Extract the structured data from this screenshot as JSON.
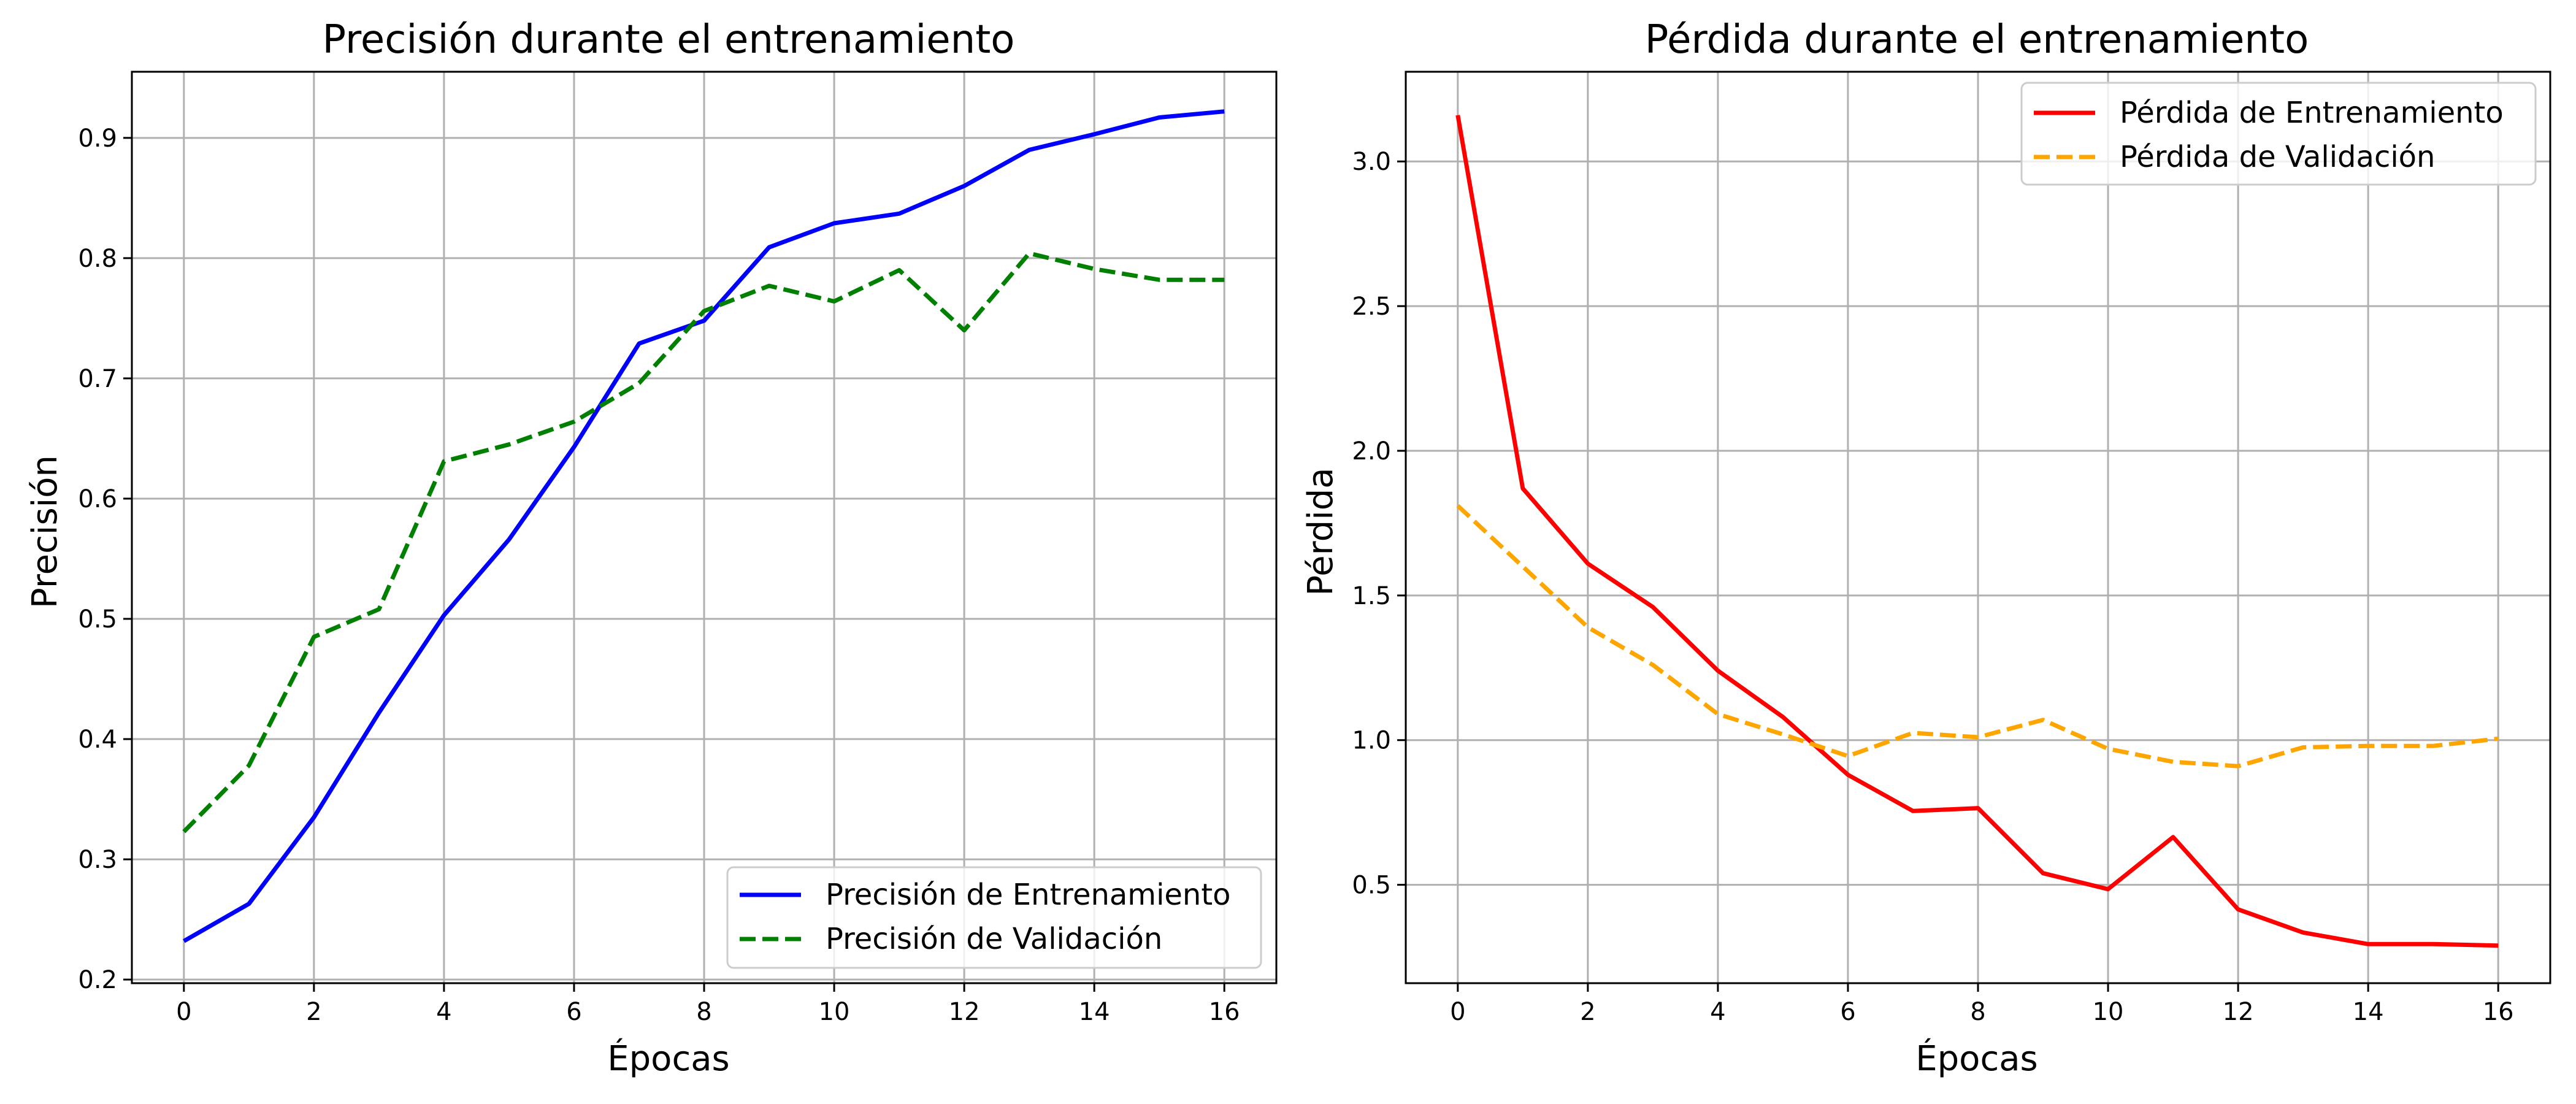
{
  "chart_data": [
    {
      "type": "line",
      "title": "Precisión durante el entrenamiento",
      "xlabel": "Épocas",
      "ylabel": "Precisión",
      "x": [
        0,
        1,
        2,
        3,
        4,
        5,
        6,
        7,
        8,
        9,
        10,
        11,
        12,
        13,
        14,
        15,
        16
      ],
      "xticks": [
        0,
        2,
        4,
        6,
        8,
        10,
        12,
        14,
        16
      ],
      "yticks": [
        0.2,
        0.3,
        0.4,
        0.5,
        0.6,
        0.7,
        0.8,
        0.9
      ],
      "ytick_labels": [
        "0.2",
        "0.3",
        "0.4",
        "0.5",
        "0.6",
        "0.7",
        "0.8",
        "0.9"
      ],
      "xlim": [
        -0.8,
        16.8
      ],
      "ylim": [
        0.197,
        0.955
      ],
      "grid": true,
      "legend_position": "lower-right",
      "series": [
        {
          "name": "Precisión de Entrenamiento",
          "color": "#0000ff",
          "dash": "solid",
          "values": [
            0.232,
            0.263,
            0.335,
            0.422,
            0.503,
            0.566,
            0.643,
            0.729,
            0.748,
            0.809,
            0.829,
            0.837,
            0.86,
            0.89,
            0.903,
            0.917,
            0.922
          ]
        },
        {
          "name": "Precisión de Validación",
          "color": "#008000",
          "dash": "dashed",
          "values": [
            0.323,
            0.378,
            0.485,
            0.508,
            0.631,
            0.645,
            0.664,
            0.696,
            0.756,
            0.777,
            0.764,
            0.79,
            0.74,
            0.804,
            0.791,
            0.782,
            0.782
          ]
        }
      ]
    },
    {
      "type": "line",
      "title": "Pérdida durante el entrenamiento",
      "xlabel": "Épocas",
      "ylabel": "Pérdida",
      "x": [
        0,
        1,
        2,
        3,
        4,
        5,
        6,
        7,
        8,
        9,
        10,
        11,
        12,
        13,
        14,
        15,
        16
      ],
      "xticks": [
        0,
        2,
        4,
        6,
        8,
        10,
        12,
        14,
        16
      ],
      "yticks": [
        0.5,
        1.0,
        1.5,
        2.0,
        2.5,
        3.0
      ],
      "ytick_labels": [
        "0.5",
        "1.0",
        "1.5",
        "2.0",
        "2.5",
        "3.0"
      ],
      "xlim": [
        -0.8,
        16.8
      ],
      "ylim": [
        0.16,
        3.31
      ],
      "grid": true,
      "legend_position": "upper-right",
      "series": [
        {
          "name": "Pérdida de Entrenamiento",
          "color": "#ff0000",
          "dash": "solid",
          "values": [
            3.16,
            1.87,
            1.61,
            1.46,
            1.24,
            1.08,
            0.88,
            0.755,
            0.765,
            0.54,
            0.485,
            0.665,
            0.415,
            0.335,
            0.295,
            0.295,
            0.29
          ]
        },
        {
          "name": "Pérdida de Validación",
          "color": "#ffa500",
          "dash": "dashed",
          "values": [
            1.81,
            1.6,
            1.39,
            1.26,
            1.09,
            1.02,
            0.945,
            1.025,
            1.01,
            1.07,
            0.97,
            0.925,
            0.91,
            0.975,
            0.98,
            0.98,
            1.005
          ]
        }
      ]
    }
  ]
}
